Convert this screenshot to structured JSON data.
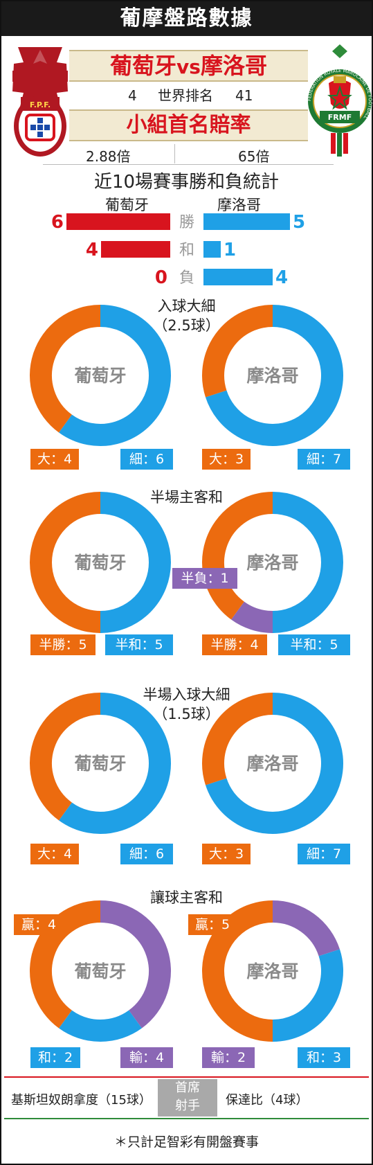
{
  "header": {
    "title": "葡摩盤路數據"
  },
  "match": {
    "home": "葡萄牙",
    "vs": "vs",
    "away": "摩洛哥",
    "home_rank": "4",
    "rank_label": "世界排名",
    "away_rank": "41",
    "odds_title": "小組首名賠率",
    "home_odds": "2.88倍",
    "away_odds": "65倍"
  },
  "logos": {
    "portugal_text": "F.P.F.",
    "morocco_text": "FRMF",
    "morocco_ring_text": "FÉDÉRATION ROYALE MAROCAINE DE FOOTBALL"
  },
  "colors": {
    "orange": "#ec6b0f",
    "blue": "#1fa0e6",
    "purple": "#8b67b5",
    "red": "#d8141e"
  },
  "recent": {
    "title": "近10場賽事勝和負統計",
    "home_name": "葡萄牙",
    "away_name": "摩洛哥",
    "rows": [
      {
        "label": "勝",
        "home": 6,
        "away": 5
      },
      {
        "label": "和",
        "home": 4,
        "away": 1
      },
      {
        "label": "負",
        "home": 0,
        "away": 4
      }
    ]
  },
  "chart_data": [
    {
      "type": "pie",
      "title": "入球大細",
      "subtitle": "（2.5球）",
      "charts": [
        {
          "name": "葡萄牙",
          "slices": [
            {
              "label": "大",
              "value": 4,
              "color": "#ec6b0f"
            },
            {
              "label": "細",
              "value": 6,
              "color": "#1fa0e6"
            }
          ]
        },
        {
          "name": "摩洛哥",
          "slices": [
            {
              "label": "大",
              "value": 3,
              "color": "#ec6b0f"
            },
            {
              "label": "細",
              "value": 7,
              "color": "#1fa0e6"
            }
          ]
        }
      ]
    },
    {
      "type": "pie",
      "title": "半場主客和",
      "subtitle": "",
      "charts": [
        {
          "name": "葡萄牙",
          "slices": [
            {
              "label": "半勝",
              "value": 5,
              "color": "#ec6b0f"
            },
            {
              "label": "半和",
              "value": 5,
              "color": "#1fa0e6"
            }
          ]
        },
        {
          "name": "摩洛哥",
          "slices": [
            {
              "label": "半勝",
              "value": 4,
              "color": "#ec6b0f"
            },
            {
              "label": "半和",
              "value": 5,
              "color": "#1fa0e6"
            },
            {
              "label": "半負",
              "value": 1,
              "color": "#8b67b5"
            }
          ]
        }
      ]
    },
    {
      "type": "pie",
      "title": "半場入球大細",
      "subtitle": "（1.5球）",
      "charts": [
        {
          "name": "葡萄牙",
          "slices": [
            {
              "label": "大",
              "value": 4,
              "color": "#ec6b0f"
            },
            {
              "label": "細",
              "value": 6,
              "color": "#1fa0e6"
            }
          ]
        },
        {
          "name": "摩洛哥",
          "slices": [
            {
              "label": "大",
              "value": 3,
              "color": "#ec6b0f"
            },
            {
              "label": "細",
              "value": 7,
              "color": "#1fa0e6"
            }
          ]
        }
      ]
    },
    {
      "type": "pie",
      "title": "讓球主客和",
      "subtitle": "",
      "charts": [
        {
          "name": "葡萄牙",
          "slices": [
            {
              "label": "贏",
              "value": 4,
              "color": "#ec6b0f"
            },
            {
              "label": "和",
              "value": 2,
              "color": "#1fa0e6"
            },
            {
              "label": "輸",
              "value": 4,
              "color": "#8b67b5"
            }
          ]
        },
        {
          "name": "摩洛哥",
          "slices": [
            {
              "label": "贏",
              "value": 5,
              "color": "#ec6b0f"
            },
            {
              "label": "和",
              "value": 3,
              "color": "#1fa0e6"
            },
            {
              "label": "輸",
              "value": 2,
              "color": "#8b67b5"
            }
          ]
        }
      ]
    }
  ],
  "scorers": {
    "label_line1": "首席",
    "label_line2": "射手",
    "home": "基斯坦奴朗拿度（15球）",
    "away": "保達比（4球）"
  },
  "footnote": "＊只計足智彩有開盤賽事"
}
